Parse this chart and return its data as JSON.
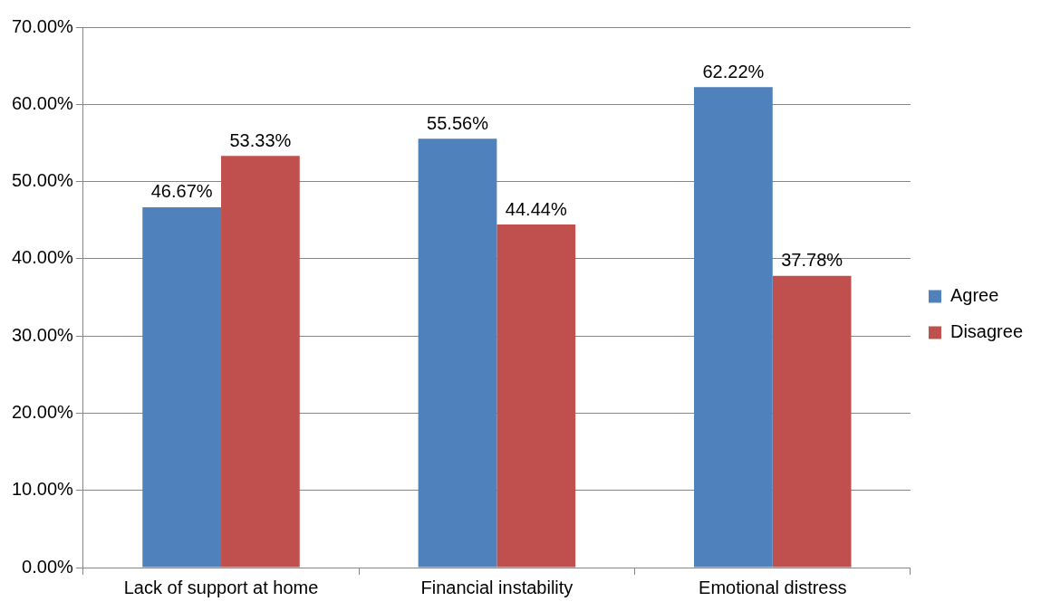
{
  "chart_data": {
    "type": "bar",
    "categories": [
      "Lack of support at home",
      "Financial instability",
      "Emotional distress"
    ],
    "series": [
      {
        "name": "Agree",
        "color": "#4f81bd",
        "values": [
          46.67,
          55.56,
          62.22
        ],
        "value_labels": [
          "46.67%",
          "55.56%",
          "62.22%"
        ]
      },
      {
        "name": "Disagree",
        "color": "#c0504d",
        "values": [
          53.33,
          44.44,
          37.78
        ],
        "value_labels": [
          "53.33%",
          "44.44%",
          "37.78%"
        ]
      }
    ],
    "ylim": [
      0,
      70
    ],
    "yticks": [
      {
        "value": 0,
        "label": "0.00%"
      },
      {
        "value": 10,
        "label": "10.00%"
      },
      {
        "value": 20,
        "label": "20.00%"
      },
      {
        "value": 30,
        "label": "30.00%"
      },
      {
        "value": 40,
        "label": "40.00%"
      },
      {
        "value": 50,
        "label": "50.00%"
      },
      {
        "value": 60,
        "label": "60.00%"
      },
      {
        "value": 70,
        "label": "70.00%"
      }
    ],
    "grid": "y",
    "legend": "right"
  }
}
